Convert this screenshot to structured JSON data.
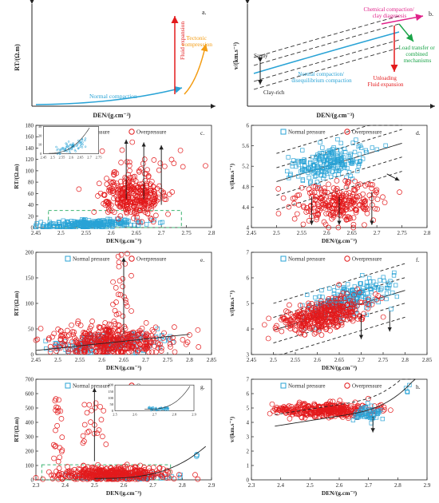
{
  "figure": {
    "legend_normal": "Normal pressure",
    "legend_over": "Overpressure",
    "colors": {
      "normal": "#29a3d6",
      "over": "#e31a1c",
      "tectonic": "#f39c12",
      "load": "#19a347",
      "diagenesis": "#e0218a",
      "box": "#3cb371"
    }
  },
  "chart_data": [
    {
      "id": "a",
      "panel_label": "a.",
      "type": "line",
      "xlabel": "DEN/(g.cm⁻³)",
      "ylabel": "RT/(Ω.m)",
      "annotations": [
        "Normal compaction",
        "Fluid expansion",
        "Tectonic compression"
      ]
    },
    {
      "id": "b",
      "panel_label": "b.",
      "type": "line",
      "xlabel": "DEN/(g.cm⁻³)",
      "ylabel": "v/(km.s⁻¹)",
      "annotations": [
        "Sandy",
        "Clay-rich",
        "Normal compaction/ disequilibrium compaction",
        "Chemical compaction/ clay diagenesis",
        "Unloading Fluid expansion",
        "Load transfer or combined mechanisms"
      ]
    },
    {
      "id": "c",
      "panel_label": "c.",
      "type": "scatter",
      "xlabel": "DEN/(g.cm⁻³)",
      "ylabel": "RT/(Ω.m)",
      "xlim": [
        2.45,
        2.8
      ],
      "ylim": [
        0,
        180
      ],
      "xticks": [
        "2.45",
        "2.5",
        "2.55",
        "2.6",
        "2.65",
        "2.7",
        "2.75",
        "2.8"
      ],
      "yticks": [
        "0",
        "20",
        "40",
        "60",
        "80",
        "100",
        "120",
        "140",
        "160",
        "180"
      ],
      "legend": [
        "Normal pressure",
        "Overpressure"
      ],
      "inset": {
        "xticks": [
          "2.45",
          "2.5",
          "2.55",
          "2.6",
          "2.65",
          "2.7",
          "2.75"
        ],
        "yticks": [
          "0",
          "10",
          "20",
          "30"
        ],
        "xlim": [
          2.45,
          2.75
        ],
        "ylim": [
          0,
          30
        ]
      }
    },
    {
      "id": "d",
      "panel_label": "d.",
      "type": "scatter",
      "xlabel": "DEN/(g.cm⁻³)",
      "ylabel": "v/(km.s⁻¹)",
      "xlim": [
        2.45,
        2.8
      ],
      "ylim": [
        4,
        6
      ],
      "xticks": [
        "2.45",
        "2.5",
        "2.55",
        "2.6",
        "2.65",
        "2.7",
        "2.75",
        "2.8"
      ],
      "yticks": [
        "4",
        "4.4",
        "4.8",
        "5.2",
        "5.6",
        "6"
      ],
      "legend": [
        "Normal pressure",
        "Overpressure"
      ]
    },
    {
      "id": "e",
      "panel_label": "e.",
      "type": "scatter",
      "xlabel": "DEN/(g.cm⁻³)",
      "ylabel": "RT/(Ω.m)",
      "xlim": [
        2.45,
        2.85
      ],
      "ylim": [
        0,
        200
      ],
      "xticks": [
        "2.45",
        "2.5",
        "2.55",
        "2.6",
        "2.65",
        "2.7",
        "2.75",
        "2.8",
        "2.85"
      ],
      "yticks": [
        "0",
        "50",
        "100",
        "150",
        "200"
      ],
      "legend": [
        "Normal pressure",
        "Overpressure"
      ]
    },
    {
      "id": "f",
      "panel_label": "f.",
      "type": "scatter",
      "xlabel": "DEN/(g.cm⁻³)",
      "ylabel": "v/(km.s⁻¹)",
      "xlim": [
        2.45,
        2.85
      ],
      "ylim": [
        3,
        7
      ],
      "xticks": [
        "2.45",
        "2.5",
        "2.55",
        "2.6",
        "2.65",
        "2.7",
        "2.75",
        "2.8",
        "2.85"
      ],
      "yticks": [
        "3",
        "4",
        "5",
        "6",
        "7"
      ],
      "legend": [
        "Normal pressure",
        "Overpressure"
      ]
    },
    {
      "id": "g",
      "panel_label": "g.",
      "type": "scatter",
      "xlabel": "DEN/(g.cm⁻³)",
      "ylabel": "RT/(Ω.m)",
      "xlim": [
        2.3,
        2.9
      ],
      "ylim": [
        0,
        700
      ],
      "xticks": [
        "2.3",
        "2.4",
        "2.5",
        "2.6",
        "2.7",
        "2.8",
        "2.9"
      ],
      "yticks": [
        "0",
        "100",
        "200",
        "300",
        "400",
        "500",
        "600",
        "700"
      ],
      "legend": [
        "Normal pressure",
        "Overpressure"
      ],
      "inset": {
        "xticks": [
          "2.5",
          "2.6",
          "2.7",
          "2.8",
          "2.9"
        ],
        "yticks": [
          "0",
          "50",
          "100",
          "150",
          "200"
        ],
        "xlim": [
          2.5,
          2.9
        ],
        "ylim": [
          0,
          200
        ]
      }
    },
    {
      "id": "h",
      "panel_label": "h.",
      "type": "scatter",
      "xlabel": "DEN/(g.cm⁻³)",
      "ylabel": "v/(km.s⁻¹)",
      "xlim": [
        2.3,
        2.9
      ],
      "ylim": [
        0,
        7
      ],
      "xticks": [
        "2.3",
        "2.4",
        "2.5",
        "2.6",
        "2.7",
        "2.8",
        "2.9"
      ],
      "yticks": [
        "0",
        "1",
        "2",
        "3",
        "4",
        "5",
        "6",
        "7"
      ],
      "legend": [
        "Normal pressure",
        "Overpressure"
      ]
    }
  ]
}
